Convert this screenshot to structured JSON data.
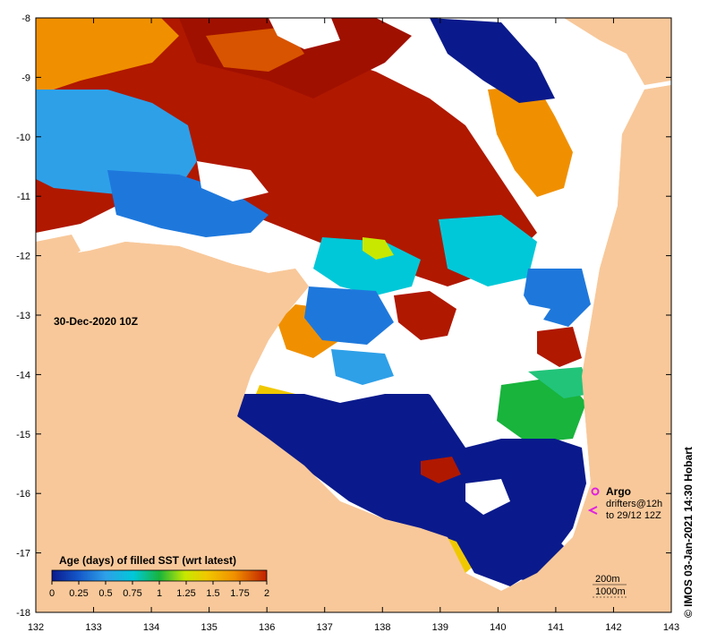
{
  "map": {
    "timestamp": "30-Dec-2020 10Z",
    "lon_ticks": [
      "132",
      "133",
      "134",
      "135",
      "136",
      "137",
      "138",
      "139",
      "140",
      "141",
      "142",
      "143"
    ],
    "lat_ticks": [
      "-8",
      "-9",
      "-10",
      "-11",
      "-12",
      "-13",
      "-14",
      "-15",
      "-16",
      "-17",
      "-18"
    ],
    "colors": {
      "land": "#f8c89a",
      "nodata": "#ffffff",
      "age_0": "#0a1a8c",
      "age_0_25": "#1456c8",
      "age_0_5": "#2ea0e8",
      "age_0_75": "#00c8d8",
      "age_1": "#18b43c",
      "age_1_25": "#c8e800",
      "age_1_5": "#f0c800",
      "age_1_75": "#f09000",
      "age_2": "#c02000",
      "age_2_dark": "#a01000"
    }
  },
  "colorbar": {
    "title": "Age (days) of filled SST (wrt latest)",
    "labels": [
      "0",
      "0.25",
      "0.5",
      "0.75",
      "1",
      "1.25",
      "1.5",
      "1.75",
      "2"
    ]
  },
  "legend": {
    "argo_label": "Argo",
    "drifters_line1": "drifters@12h",
    "drifters_line2": "to 29/12 12Z",
    "argo_icon": "circle-marker-icon",
    "drifter_icon": "arrow-left-icon"
  },
  "depth_legend": {
    "line1": "200m",
    "line2": "1000m"
  },
  "credit": "© IMOS 03-Jan-2021 14:30 Hobart"
}
